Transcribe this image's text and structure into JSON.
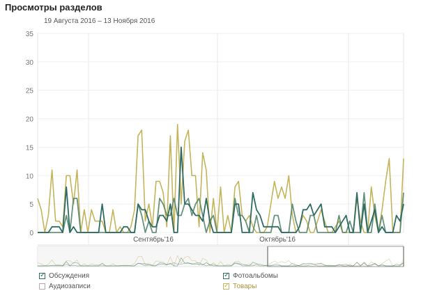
{
  "page": {
    "title": "Просмотры разделов",
    "date_range": "19 Августа 2016 – 13 Ноября 2016"
  },
  "legend": {
    "items": [
      {
        "label": "Обсуждения",
        "checked": true,
        "color": "#2e6b62"
      },
      {
        "label": "Фотоальбомы",
        "checked": true,
        "color": "#2e6b62"
      },
      {
        "label": "Аудиозаписи",
        "checked": false,
        "color": "#b07a7a"
      },
      {
        "label": "Товары",
        "checked": true,
        "color": "#c4b45a"
      }
    ]
  },
  "chart_data": {
    "type": "line",
    "ylim": [
      0,
      35
    ],
    "y_ticks": [
      "0",
      "5",
      "10",
      "15",
      "20",
      "25",
      "30",
      "35"
    ],
    "x_labels": [
      "Сентябрь'16",
      "Октябрь'16"
    ],
    "grid": true,
    "series": [
      {
        "name": "Обсуждения",
        "color": "#2e6b62",
        "values": [
          0,
          0,
          0,
          0,
          1,
          1,
          1,
          0,
          8,
          0,
          1,
          0,
          0,
          0,
          0,
          0,
          0,
          0,
          5,
          0,
          0,
          0,
          0,
          0,
          1,
          1,
          0,
          0,
          5,
          4,
          4,
          2,
          1,
          1,
          3,
          3,
          2,
          5,
          0,
          0,
          15,
          5,
          5,
          4,
          3,
          3,
          2,
          6,
          2,
          0,
          0,
          0,
          0,
          0,
          0,
          5,
          5,
          0,
          0,
          0,
          7,
          4,
          3,
          1,
          1,
          1,
          1,
          1,
          0,
          0,
          0,
          0,
          0,
          1,
          4,
          4,
          5,
          3,
          4,
          5,
          1,
          1,
          1,
          0,
          1,
          2,
          3,
          0,
          0,
          7,
          0,
          5,
          0,
          2,
          4,
          0,
          1,
          0,
          0,
          0,
          3,
          2,
          5
        ]
      },
      {
        "name": "Фотоальбомы",
        "color": "#55876c",
        "values": [
          0,
          0,
          0,
          0,
          0,
          0,
          0,
          0,
          3,
          0,
          6,
          6,
          0,
          0,
          0,
          0,
          0,
          0,
          0,
          0,
          0,
          0,
          0,
          0,
          0,
          0,
          0,
          0,
          5,
          3,
          0,
          2,
          0,
          0,
          6,
          5,
          3,
          3,
          6,
          3,
          3,
          5,
          6,
          3,
          5,
          6,
          3,
          0,
          2,
          3,
          0,
          0,
          0,
          0,
          0,
          6,
          3,
          3,
          2,
          0,
          0,
          3,
          0,
          0,
          0,
          0,
          3,
          3,
          0,
          0,
          0,
          5,
          2,
          0,
          0,
          0,
          3,
          3,
          0,
          0,
          0,
          0,
          0,
          0,
          3,
          0,
          0,
          2,
          0,
          0,
          0,
          7,
          0,
          0,
          5,
          0,
          3,
          0,
          0,
          0,
          0,
          0,
          7
        ]
      },
      {
        "name": "Товары",
        "color": "#c4b45a",
        "values": [
          6,
          4,
          0,
          3,
          11,
          2,
          2,
          1,
          10,
          10,
          5,
          11,
          0,
          4,
          0,
          4,
          2,
          2,
          2,
          0,
          0,
          4,
          0,
          1,
          0,
          0,
          1,
          4,
          17,
          18,
          2,
          5,
          1,
          9,
          9,
          7,
          1,
          17,
          0,
          19,
          5,
          16,
          18,
          10,
          10,
          1,
          14,
          11,
          0,
          6,
          0,
          8,
          0,
          3,
          0,
          8,
          9,
          3,
          2,
          3,
          1,
          0,
          0,
          0,
          1,
          5,
          9,
          6,
          8,
          6,
          10,
          3,
          0,
          1,
          3,
          2,
          0,
          0,
          2,
          4,
          2,
          0,
          0,
          1,
          2,
          0,
          0,
          0,
          0,
          6,
          2,
          0,
          0,
          8,
          3,
          0,
          4,
          9,
          13,
          0,
          0,
          0,
          13
        ]
      }
    ]
  }
}
